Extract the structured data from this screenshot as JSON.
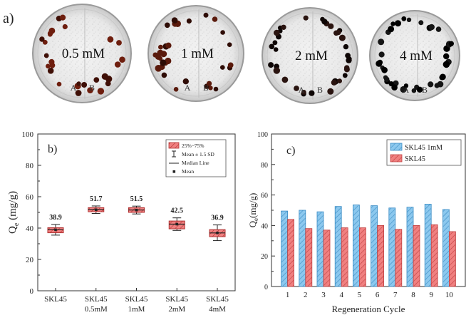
{
  "panel_a": {
    "label": "a)",
    "dishes": [
      {
        "conc": "0.5 mM",
        "side_a": "A",
        "side_b": "B",
        "bead_color": "#6e1e0e",
        "bead_dark": "#3f0f06"
      },
      {
        "conc": "1 mM",
        "side_a": "A",
        "side_b": "B",
        "bead_color": "#5a1a0c",
        "bead_dark": "#2e0c05"
      },
      {
        "conc": "2 mM",
        "side_a": "A",
        "side_b": "B",
        "bead_color": "#2a1410",
        "bead_dark": "#0e0605"
      },
      {
        "conc": "4 mM",
        "side_a": "A",
        "side_b": "B",
        "bead_color": "#151515",
        "bead_dark": "#000000"
      }
    ]
  },
  "chart_data": [
    {
      "type": "box",
      "panel_label": "b)",
      "ylabel": "Q",
      "ylabel_sub": "e",
      "ylabel_unit": " (mg/g)",
      "ylim": [
        0,
        100
      ],
      "yticks": [
        "0",
        "20",
        "40",
        "60",
        "80",
        "100"
      ],
      "categories": [
        {
          "line1": "SKL45",
          "line2": ""
        },
        {
          "line1": "SKL45",
          "line2": "0.5mM"
        },
        {
          "line1": "SKL45",
          "line2": "1mM"
        },
        {
          "line1": "SKL45",
          "line2": "2mM"
        },
        {
          "line1": "SKL45",
          "line2": "4mM"
        }
      ],
      "boxes": [
        {
          "q1": 37.0,
          "q3": 40.2,
          "median": 38.9,
          "mean": 38.9,
          "lower": 35.5,
          "upper": 42.3,
          "label": "38.9"
        },
        {
          "q1": 50.4,
          "q3": 53.0,
          "median": 51.7,
          "mean": 51.7,
          "lower": 49.3,
          "upper": 54.1,
          "label": "51.7"
        },
        {
          "q1": 50.0,
          "q3": 53.0,
          "median": 51.5,
          "mean": 51.5,
          "lower": 49.0,
          "upper": 54.0,
          "label": "51.5"
        },
        {
          "q1": 39.5,
          "q3": 44.5,
          "median": 42.5,
          "mean": 42.5,
          "lower": 38.5,
          "upper": 46.5,
          "label": "42.5"
        },
        {
          "q1": 34.5,
          "q3": 39.0,
          "median": 36.9,
          "mean": 36.9,
          "lower": 32.0,
          "upper": 42.0,
          "label": "36.9"
        }
      ],
      "legend": {
        "position": "top-right",
        "box": "25%~75%",
        "whisker": "Mean ± 1.5 SD",
        "median": "Median Line",
        "mean": "Mean"
      },
      "colors": {
        "box_fill": "#f08080",
        "box_edge": "#b03030"
      }
    },
    {
      "type": "bar",
      "panel_label": "c)",
      "ylabel": "Q",
      "ylabel_sub": "e",
      "ylabel_unit": "(mg/g)",
      "xlabel": "Regeneration Cycle",
      "ylim": [
        0,
        100
      ],
      "yticks": [
        "0",
        "20",
        "40",
        "60",
        "80",
        "100"
      ],
      "categories": [
        "1",
        "2",
        "3",
        "4",
        "5",
        "6",
        "7",
        "8",
        "9",
        "10"
      ],
      "series": [
        {
          "name": "SKL45 1mM",
          "values": [
            49.5,
            50,
            49,
            52.5,
            53.5,
            53,
            51.5,
            52,
            54,
            50.5
          ],
          "color": "#8cc8ee",
          "edge": "#3b8cc4"
        },
        {
          "name": "SKL45",
          "values": [
            44,
            38,
            37,
            38.5,
            38.5,
            40,
            37.5,
            40,
            40.5,
            36
          ],
          "color": "#f08080",
          "edge": "#c04040"
        }
      ],
      "legend": {
        "position": "top-right"
      }
    }
  ]
}
